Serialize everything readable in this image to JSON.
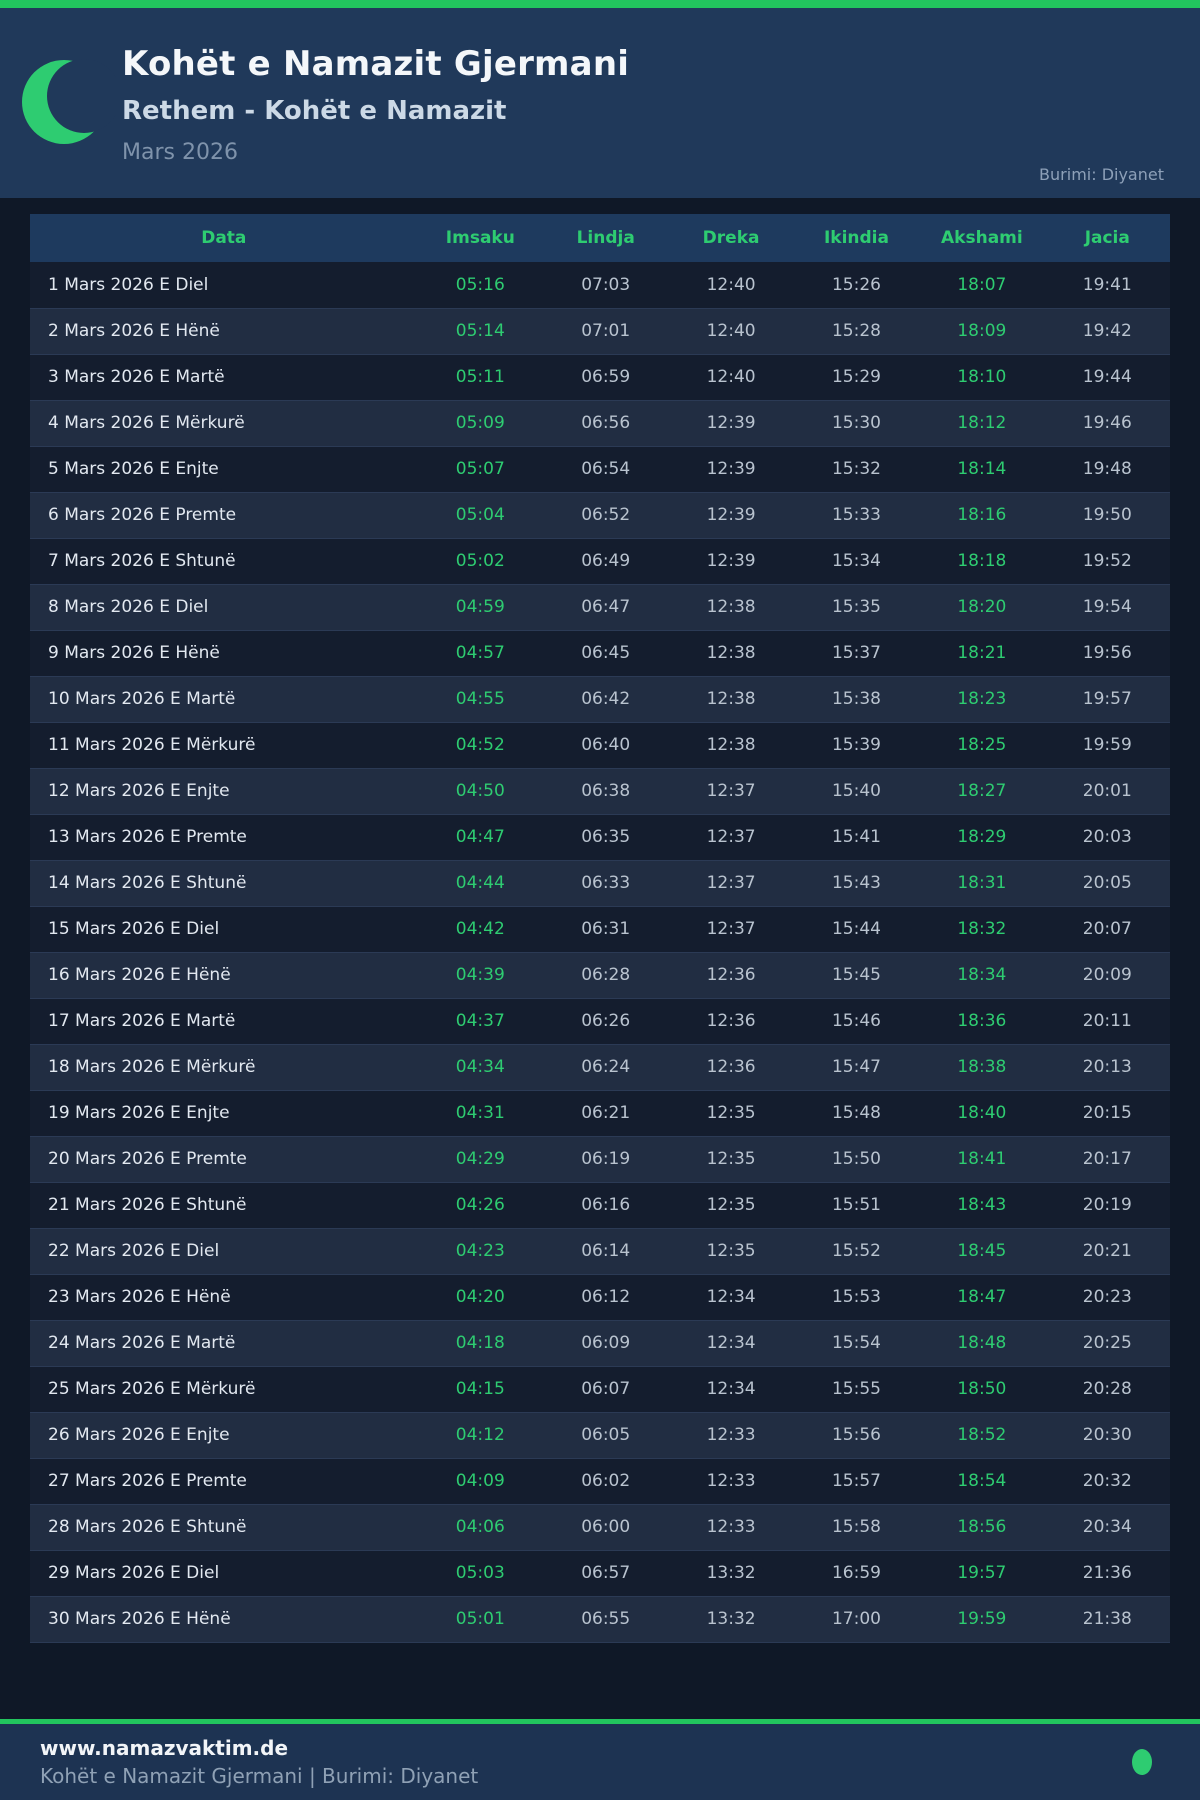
{
  "colors": {
    "top_bar_green": "#22c55e",
    "accent_green": "#2ecc71",
    "header_bg": "#20395a",
    "page_bg": "#0f1827",
    "table_header_bg": "#1e3a5e",
    "row_bg": "#141d2e",
    "row_alt_bg": "#212d42",
    "footer_bg": "#1d3352"
  },
  "header": {
    "title": "Kohët e Namazit Gjermani",
    "subtitle": "Rethem - Kohët e Namazit",
    "month": "Mars 2026",
    "source": "Burimi: Diyanet",
    "moon_icon": "crescent-moon"
  },
  "table": {
    "columns": [
      "Data",
      "Imsaku",
      "Lindja",
      "Dreka",
      "Ikindia",
      "Akshami",
      "Jacia"
    ],
    "green_value_columns": [
      "Imsaku",
      "Akshami"
    ],
    "rows": [
      {
        "date": "1 Mars 2026 E Diel",
        "times": [
          "05:16",
          "07:03",
          "12:40",
          "15:26",
          "18:07",
          "19:41"
        ]
      },
      {
        "date": "2 Mars 2026 E Hënë",
        "times": [
          "05:14",
          "07:01",
          "12:40",
          "15:28",
          "18:09",
          "19:42"
        ]
      },
      {
        "date": "3 Mars 2026 E Martë",
        "times": [
          "05:11",
          "06:59",
          "12:40",
          "15:29",
          "18:10",
          "19:44"
        ]
      },
      {
        "date": "4 Mars 2026 E Mërkurë",
        "times": [
          "05:09",
          "06:56",
          "12:39",
          "15:30",
          "18:12",
          "19:46"
        ]
      },
      {
        "date": "5 Mars 2026 E Enjte",
        "times": [
          "05:07",
          "06:54",
          "12:39",
          "15:32",
          "18:14",
          "19:48"
        ]
      },
      {
        "date": "6 Mars 2026 E Premte",
        "times": [
          "05:04",
          "06:52",
          "12:39",
          "15:33",
          "18:16",
          "19:50"
        ]
      },
      {
        "date": "7 Mars 2026 E Shtunë",
        "times": [
          "05:02",
          "06:49",
          "12:39",
          "15:34",
          "18:18",
          "19:52"
        ]
      },
      {
        "date": "8 Mars 2026 E Diel",
        "times": [
          "04:59",
          "06:47",
          "12:38",
          "15:35",
          "18:20",
          "19:54"
        ]
      },
      {
        "date": "9 Mars 2026 E Hënë",
        "times": [
          "04:57",
          "06:45",
          "12:38",
          "15:37",
          "18:21",
          "19:56"
        ]
      },
      {
        "date": "10 Mars 2026 E Martë",
        "times": [
          "04:55",
          "06:42",
          "12:38",
          "15:38",
          "18:23",
          "19:57"
        ]
      },
      {
        "date": "11 Mars 2026 E Mërkurë",
        "times": [
          "04:52",
          "06:40",
          "12:38",
          "15:39",
          "18:25",
          "19:59"
        ]
      },
      {
        "date": "12 Mars 2026 E Enjte",
        "times": [
          "04:50",
          "06:38",
          "12:37",
          "15:40",
          "18:27",
          "20:01"
        ]
      },
      {
        "date": "13 Mars 2026 E Premte",
        "times": [
          "04:47",
          "06:35",
          "12:37",
          "15:41",
          "18:29",
          "20:03"
        ]
      },
      {
        "date": "14 Mars 2026 E Shtunë",
        "times": [
          "04:44",
          "06:33",
          "12:37",
          "15:43",
          "18:31",
          "20:05"
        ]
      },
      {
        "date": "15 Mars 2026 E Diel",
        "times": [
          "04:42",
          "06:31",
          "12:37",
          "15:44",
          "18:32",
          "20:07"
        ]
      },
      {
        "date": "16 Mars 2026 E Hënë",
        "times": [
          "04:39",
          "06:28",
          "12:36",
          "15:45",
          "18:34",
          "20:09"
        ]
      },
      {
        "date": "17 Mars 2026 E Martë",
        "times": [
          "04:37",
          "06:26",
          "12:36",
          "15:46",
          "18:36",
          "20:11"
        ]
      },
      {
        "date": "18 Mars 2026 E Mërkurë",
        "times": [
          "04:34",
          "06:24",
          "12:36",
          "15:47",
          "18:38",
          "20:13"
        ]
      },
      {
        "date": "19 Mars 2026 E Enjte",
        "times": [
          "04:31",
          "06:21",
          "12:35",
          "15:48",
          "18:40",
          "20:15"
        ]
      },
      {
        "date": "20 Mars 2026 E Premte",
        "times": [
          "04:29",
          "06:19",
          "12:35",
          "15:50",
          "18:41",
          "20:17"
        ]
      },
      {
        "date": "21 Mars 2026 E Shtunë",
        "times": [
          "04:26",
          "06:16",
          "12:35",
          "15:51",
          "18:43",
          "20:19"
        ]
      },
      {
        "date": "22 Mars 2026 E Diel",
        "times": [
          "04:23",
          "06:14",
          "12:35",
          "15:52",
          "18:45",
          "20:21"
        ]
      },
      {
        "date": "23 Mars 2026 E Hënë",
        "times": [
          "04:20",
          "06:12",
          "12:34",
          "15:53",
          "18:47",
          "20:23"
        ]
      },
      {
        "date": "24 Mars 2026 E Martë",
        "times": [
          "04:18",
          "06:09",
          "12:34",
          "15:54",
          "18:48",
          "20:25"
        ]
      },
      {
        "date": "25 Mars 2026 E Mërkurë",
        "times": [
          "04:15",
          "06:07",
          "12:34",
          "15:55",
          "18:50",
          "20:28"
        ]
      },
      {
        "date": "26 Mars 2026 E Enjte",
        "times": [
          "04:12",
          "06:05",
          "12:33",
          "15:56",
          "18:52",
          "20:30"
        ]
      },
      {
        "date": "27 Mars 2026 E Premte",
        "times": [
          "04:09",
          "06:02",
          "12:33",
          "15:57",
          "18:54",
          "20:32"
        ]
      },
      {
        "date": "28 Mars 2026 E Shtunë",
        "times": [
          "04:06",
          "06:00",
          "12:33",
          "15:58",
          "18:56",
          "20:34"
        ]
      },
      {
        "date": "29 Mars 2026 E Diel",
        "times": [
          "05:03",
          "06:57",
          "13:32",
          "16:59",
          "19:57",
          "21:36"
        ]
      },
      {
        "date": "30 Mars 2026 E Hënë",
        "times": [
          "05:01",
          "06:55",
          "13:32",
          "17:00",
          "19:59",
          "21:38"
        ]
      }
    ]
  },
  "footer": {
    "website": "www.namazvaktim.de",
    "tagline": "Kohët e Namazit Gjermani | Burimi: Diyanet",
    "status_dot": "green-dot"
  }
}
